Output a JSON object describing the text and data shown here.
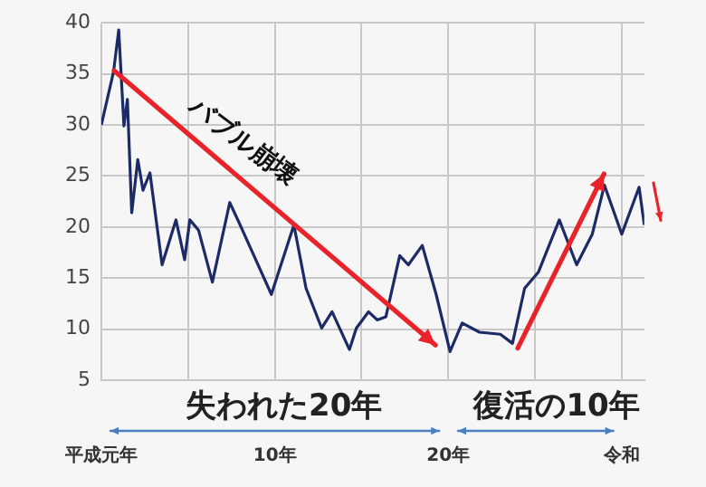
{
  "chart_data": {
    "type": "line",
    "x": [
      0,
      0.7,
      1.0,
      1.3,
      1.5,
      1.75,
      2.1,
      2.4,
      2.8,
      3.5,
      4.3,
      4.8,
      5.1,
      5.6,
      6.4,
      7.4,
      8.0,
      8.9,
      9.8,
      11.1,
      11.8,
      12.7,
      13.3,
      14.3,
      14.7,
      15.4,
      15.9,
      16.4,
      17.2,
      17.7,
      18.5,
      19.3,
      20.1,
      20.8,
      21.8,
      23.0,
      23.7,
      24.4,
      25.2,
      26.4,
      27.4,
      28.3,
      29.0,
      30.0,
      31.0,
      31.3
    ],
    "series": [
      {
        "color": "#1c2a66",
        "values": [
          30,
          35.2,
          39.3,
          29.9,
          32.5,
          21.4,
          26.6,
          23.6,
          25.3,
          16.3,
          20.7,
          16.8,
          20.7,
          19.7,
          14.6,
          22.4,
          20.2,
          16.8,
          13.4,
          20.2,
          14,
          10.1,
          11.7,
          8.0,
          10.1,
          11.7,
          10.9,
          11.2,
          17.2,
          16.3,
          18.2,
          13.4,
          7.8,
          10.6,
          9.7,
          9.5,
          8.6,
          14,
          15.6,
          20.7,
          16.3,
          19.3,
          24.1,
          19.3,
          23.9,
          20.2
        ]
      }
    ],
    "xlim": [
      0,
      31.3
    ],
    "xticks": [
      {
        "value": 0,
        "label": "平成元年"
      },
      {
        "value": 5,
        "label": null
      },
      {
        "value": 10,
        "label": "10年"
      },
      {
        "value": 15,
        "label": null
      },
      {
        "value": 20,
        "label": "20年"
      },
      {
        "value": 25,
        "label": null
      },
      {
        "value": 30,
        "label": "令和"
      }
    ],
    "ylim": [
      5,
      40
    ],
    "yticks": [
      5,
      10,
      15,
      20,
      25,
      30,
      35,
      40
    ],
    "grid": true,
    "legend": false,
    "marker": "none",
    "line_style": "solid",
    "annotations": [
      "バブル崩壊",
      "失われた20年",
      "復活の10年"
    ]
  }
}
